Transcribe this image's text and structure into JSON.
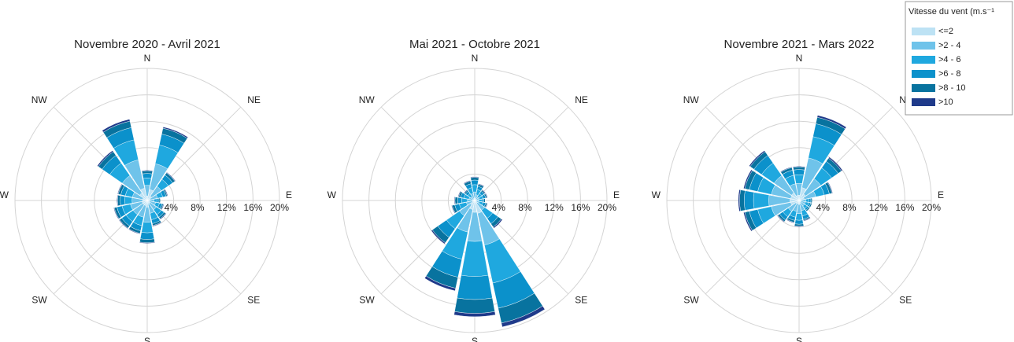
{
  "chart_data": [
    {
      "type": "windrose",
      "title": "Novembre 2020 - Avril 2021",
      "categories": [
        "N",
        null,
        "NE",
        null,
        "E",
        null,
        "SE",
        null,
        "S",
        null,
        "SW",
        null,
        "W",
        null,
        "NW",
        null
      ],
      "rlim": [
        0,
        20
      ],
      "rticks": [
        {
          "value": 4,
          "label": "4%"
        },
        {
          "value": 8,
          "label": "8%"
        },
        {
          "value": 12,
          "label": "12%"
        },
        {
          "value": 16,
          "label": "16%"
        },
        {
          "value": 20,
          "label": "20%"
        }
      ],
      "series": [
        {
          "name": "<=2",
          "color": "#bde2f4",
          "values": [
            0.7,
            1.7,
            0.8,
            0.5,
            0.3,
            0.4,
            0.5,
            0.6,
            1.0,
            0.8,
            0.8,
            0.8,
            0.7,
            0.7,
            1.4,
            1.9
          ]
        },
        {
          "name": ">2 - 4",
          "color": "#6fc3ea",
          "values": [
            1.6,
            4.0,
            1.8,
            1.1,
            0.7,
            0.9,
            1.2,
            1.4,
            2.3,
            1.8,
            1.8,
            1.8,
            1.6,
            1.6,
            3.2,
            4.4
          ]
        },
        {
          "name": ">4 - 6",
          "color": "#1fa8df",
          "values": [
            1.1,
            2.9,
            1.3,
            0.8,
            0.5,
            0.6,
            0.9,
            1.0,
            1.6,
            1.3,
            1.3,
            1.3,
            1.1,
            1.1,
            2.3,
            3.1
          ]
        },
        {
          "name": ">6 - 8",
          "color": "#0b91cb",
          "values": [
            0.7,
            1.7,
            0.8,
            0.5,
            0.3,
            0.4,
            0.5,
            0.6,
            1.0,
            0.8,
            0.8,
            0.8,
            0.7,
            0.7,
            1.4,
            1.9
          ]
        },
        {
          "name": ">8 - 10",
          "color": "#08739f",
          "values": [
            0.4,
            0.9,
            0.4,
            0.2,
            0.2,
            0.2,
            0.3,
            0.3,
            0.5,
            0.4,
            0.4,
            0.4,
            0.4,
            0.4,
            0.7,
            1.0
          ]
        },
        {
          "name": ">10",
          "color": "#1f3a8a",
          "values": [
            0.1,
            0.2,
            0.1,
            0.1,
            0,
            0.1,
            0.1,
            0.1,
            0.1,
            0.1,
            0.1,
            0.1,
            0.1,
            0.1,
            0.2,
            0.3
          ]
        }
      ]
    },
    {
      "type": "windrose",
      "title": "Mai 2021 - Octobre 2021",
      "categories": [
        "N",
        null,
        "NE",
        null,
        "E",
        null,
        "SE",
        null,
        "S",
        null,
        "SW",
        null,
        "W",
        null,
        "NW",
        null
      ],
      "rlim": [
        0,
        20
      ],
      "rticks": [
        {
          "value": 4,
          "label": "4%"
        },
        {
          "value": 8,
          "label": "8%"
        },
        {
          "value": 12,
          "label": "12%"
        },
        {
          "value": 16,
          "label": "16%"
        },
        {
          "value": 20,
          "label": "20%"
        }
      ],
      "series": [
        {
          "name": "<=2",
          "color": "#bde2f4",
          "values": [
            0.4,
            0.3,
            0.2,
            0.2,
            0.2,
            0.2,
            0.5,
            2.0,
            1.8,
            1.4,
            0.8,
            0.4,
            0.3,
            0.3,
            0.2,
            0.3
          ]
        },
        {
          "name": ">2 - 4",
          "color": "#6fc3ea",
          "values": [
            0.9,
            0.6,
            0.5,
            0.5,
            0.4,
            0.5,
            1.3,
            4.9,
            4.4,
            3.5,
            2.0,
            0.9,
            0.8,
            0.6,
            0.5,
            0.8
          ]
        },
        {
          "name": ">4 - 6",
          "color": "#1fa8df",
          "values": [
            1.1,
            0.8,
            0.6,
            0.6,
            0.5,
            0.6,
            1.5,
            5.9,
            5.3,
            4.2,
            2.4,
            1.1,
            0.9,
            0.8,
            0.6,
            0.9
          ]
        },
        {
          "name": ">6 - 8",
          "color": "#0b91cb",
          "values": [
            0.7,
            0.5,
            0.4,
            0.4,
            0.3,
            0.4,
            1.0,
            3.9,
            3.5,
            2.8,
            1.6,
            0.7,
            0.6,
            0.5,
            0.4,
            0.6
          ]
        },
        {
          "name": ">8 - 10",
          "color": "#08739f",
          "values": [
            0.4,
            0.3,
            0.2,
            0.2,
            0.2,
            0.2,
            0.6,
            2.3,
            2.1,
            1.7,
            1.0,
            0.4,
            0.4,
            0.3,
            0.2,
            0.4
          ]
        },
        {
          "name": ">10",
          "color": "#1f3a8a",
          "values": [
            0.1,
            0.1,
            0.1,
            0.1,
            0,
            0.1,
            0.2,
            0.6,
            0.5,
            0.4,
            0.2,
            0.1,
            0.1,
            0.1,
            0.1,
            0.1
          ]
        }
      ]
    },
    {
      "type": "windrose",
      "title": "Novembre 2021 - Mars 2022",
      "categories": [
        "N",
        null,
        "NE",
        null,
        "E",
        null,
        "SE",
        null,
        "S",
        null,
        "SW",
        null,
        "W",
        null,
        "NW",
        null
      ],
      "rlim": [
        0,
        20
      ],
      "rticks": [
        {
          "value": 4,
          "label": "4%"
        },
        {
          "value": 8,
          "label": "8%"
        },
        {
          "value": 12,
          "label": "12%"
        },
        {
          "value": 16,
          "label": "16%"
        },
        {
          "value": 20,
          "label": "20%"
        }
      ],
      "legend_title": "Vitesse du vent (m.s⁻¹",
      "series": [
        {
          "name": "<=2",
          "color": "#bde2f4",
          "values": [
            0.8,
            2.0,
            1.2,
            0.8,
            0.3,
            0.3,
            0.3,
            0.5,
            0.6,
            0.5,
            0.6,
            1.3,
            1.4,
            1.3,
            1.4,
            0.8
          ]
        },
        {
          "name": ">2 - 4",
          "color": "#6fc3ea",
          "values": [
            1.8,
            4.6,
            2.8,
            1.8,
            0.7,
            0.7,
            0.7,
            1.1,
            1.4,
            1.2,
            1.4,
            3.0,
            3.2,
            3.0,
            3.2,
            1.8
          ]
        },
        {
          "name": ">4 - 6",
          "color": "#1fa8df",
          "values": [
            1.3,
            3.3,
            2.0,
            1.3,
            0.5,
            0.5,
            0.5,
            0.8,
            1.0,
            0.9,
            1.0,
            2.1,
            2.3,
            2.1,
            2.3,
            1.3
          ]
        },
        {
          "name": ">6 - 8",
          "color": "#0b91cb",
          "values": [
            0.8,
            2.0,
            1.2,
            0.8,
            0.3,
            0.3,
            0.3,
            0.5,
            0.6,
            0.5,
            0.6,
            1.3,
            1.4,
            1.3,
            1.4,
            0.8
          ]
        },
        {
          "name": ">8 - 10",
          "color": "#08739f",
          "values": [
            0.4,
            1.0,
            0.6,
            0.4,
            0.2,
            0.2,
            0.2,
            0.2,
            0.3,
            0.3,
            0.3,
            0.7,
            0.7,
            0.7,
            0.7,
            0.4
          ]
        },
        {
          "name": ">10",
          "color": "#1f3a8a",
          "values": [
            0.1,
            0.3,
            0.2,
            0.1,
            0,
            0,
            0,
            0.1,
            0.1,
            0.1,
            0.1,
            0.2,
            0.2,
            0.2,
            0.2,
            0.1
          ]
        }
      ]
    }
  ]
}
